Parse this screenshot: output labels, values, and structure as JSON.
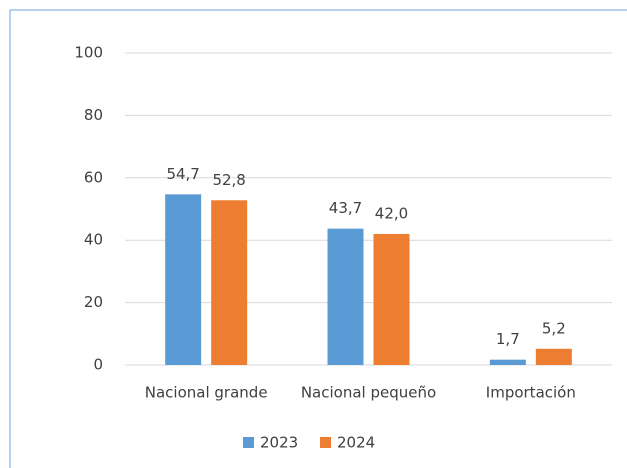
{
  "chart_data": {
    "type": "bar",
    "categories": [
      "Nacional grande",
      "Nacional pequeño",
      "Importación"
    ],
    "series": [
      {
        "name": "2023",
        "color": "#5b9bd5",
        "values": [
          54.7,
          43.7,
          1.7
        ],
        "value_labels": [
          "54,7",
          "43,7",
          "1,7"
        ]
      },
      {
        "name": "2024",
        "color": "#ed7d31",
        "values": [
          52.8,
          42.0,
          5.2
        ],
        "value_labels": [
          "52,8",
          "42,0",
          "5,2"
        ]
      }
    ],
    "ylim": [
      0,
      100
    ],
    "yticks": [
      0,
      20,
      40,
      60,
      80,
      100
    ],
    "grid": true,
    "legend": "bottom"
  }
}
